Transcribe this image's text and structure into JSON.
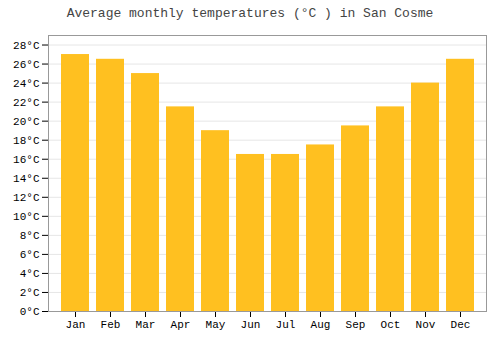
{
  "chart_data": {
    "type": "bar",
    "title": "Average monthly temperatures (°C ) in San Cosme",
    "categories": [
      "Jan",
      "Feb",
      "Mar",
      "Apr",
      "May",
      "Jun",
      "Jul",
      "Aug",
      "Sep",
      "Oct",
      "Nov",
      "Dec"
    ],
    "values": [
      27.0,
      26.5,
      25.0,
      21.5,
      19.0,
      16.5,
      16.5,
      17.5,
      19.5,
      21.5,
      24.0,
      26.5
    ],
    "color": "#FFC020",
    "ylim": [
      0,
      29
    ],
    "yticks": [
      {
        "value": 0,
        "label": "0°C"
      },
      {
        "value": 2,
        "label": "2°C"
      },
      {
        "value": 4,
        "label": "4°C"
      },
      {
        "value": 6,
        "label": "6°C"
      },
      {
        "value": 8,
        "label": "8°C"
      },
      {
        "value": 10,
        "label": "10°C"
      },
      {
        "value": 12,
        "label": "12°C"
      },
      {
        "value": 14,
        "label": "14°C"
      },
      {
        "value": 16,
        "label": "16°C"
      },
      {
        "value": 18,
        "label": "18°C"
      },
      {
        "value": 20,
        "label": "20°C"
      },
      {
        "value": 22,
        "label": "22°C"
      },
      {
        "value": 24,
        "label": "24°C"
      },
      {
        "value": 26,
        "label": "26°C"
      },
      {
        "value": 28,
        "label": "28°C"
      }
    ],
    "grid": true
  }
}
